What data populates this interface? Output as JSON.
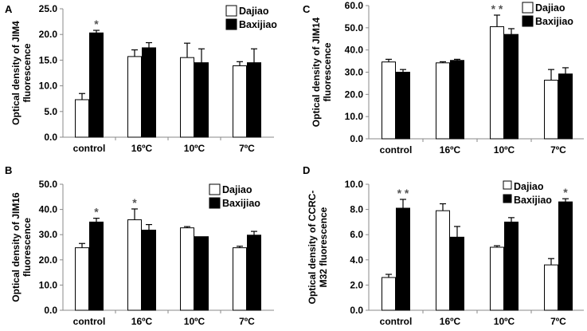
{
  "colors": {
    "dajiao": "#ffffff",
    "baxijiao": "#000000",
    "axis": "#888888",
    "stroke": "#000000"
  },
  "chart_data": [
    {
      "type": "bar",
      "panel": "A",
      "ylabel": "Optical density of JIM4 fluorescence",
      "ylabel_lines": [
        "Optical density of JIM4",
        "fluorescence"
      ],
      "ylim": [
        0,
        25
      ],
      "yticks": [
        "0.0",
        "5.0",
        "10.0",
        "15.0",
        "20.0",
        "25.0"
      ],
      "categories": [
        "control",
        "16ºC",
        "10ºC",
        "7ºC"
      ],
      "legend": [
        "Dajiao",
        "Baxijiao"
      ],
      "series": [
        {
          "name": "Dajiao",
          "values": [
            7.3,
            15.7,
            15.5,
            13.9
          ],
          "errors": [
            1.2,
            1.3,
            2.8,
            0.8
          ]
        },
        {
          "name": "Baxijiao",
          "values": [
            20.3,
            17.4,
            14.5,
            14.5
          ],
          "errors": [
            0.5,
            1.0,
            2.7,
            2.7
          ]
        }
      ],
      "annotations": [
        {
          "category": 0,
          "series": 1,
          "text": "*"
        }
      ]
    },
    {
      "type": "bar",
      "panel": "B",
      "ylabel": "Optical density of JIM16 fluorescence",
      "ylabel_lines": [
        "Optical density of JIM16",
        "fluorescence"
      ],
      "ylim": [
        0,
        50
      ],
      "yticks": [
        "0.0",
        "10.0",
        "20.0",
        "30.0",
        "40.0",
        "50.0"
      ],
      "categories": [
        "control",
        "16ºC",
        "10ºC",
        "7ºC"
      ],
      "legend": [
        "Dajiao",
        "Baxijiao"
      ],
      "series": [
        {
          "name": "Dajiao",
          "values": [
            24.8,
            35.9,
            32.7,
            24.8
          ],
          "errors": [
            1.7,
            4.3,
            0.5,
            0.6
          ]
        },
        {
          "name": "Baxijiao",
          "values": [
            35.0,
            31.8,
            29.2,
            29.8
          ],
          "errors": [
            1.5,
            2.2,
            0.0,
            1.5
          ]
        }
      ],
      "annotations": [
        {
          "category": 0,
          "series": 1,
          "text": "*"
        },
        {
          "category": 1,
          "series": 0,
          "text": "*"
        }
      ]
    },
    {
      "type": "bar",
      "panel": "C",
      "ylabel": "Optical density of JIM14 fluorescence",
      "ylabel_lines": [
        "Optical density of JIM14",
        "fluorescence"
      ],
      "ylim": [
        0,
        60
      ],
      "yticks": [
        "0.0",
        "10.0",
        "20.0",
        "30.0",
        "40.0",
        "50.0",
        "60.0"
      ],
      "categories": [
        "control",
        "16ºC",
        "10ºC",
        "7ºC"
      ],
      "legend": [
        "Dajiao",
        "Baxijiao"
      ],
      "series": [
        {
          "name": "Dajiao",
          "values": [
            34.6,
            34.2,
            50.5,
            26.4
          ],
          "errors": [
            1.2,
            0.5,
            5.2,
            4.8
          ]
        },
        {
          "name": "Baxijiao",
          "values": [
            30.0,
            35.3,
            47.0,
            29.2
          ],
          "errors": [
            1.2,
            0.5,
            2.6,
            2.8
          ]
        }
      ],
      "annotations": [
        {
          "category": 2,
          "series": 0,
          "text": "* *"
        }
      ]
    },
    {
      "type": "bar",
      "panel": "D",
      "ylabel": "Optical density of CCRC-M32 fluorescence",
      "ylabel_lines": [
        "Optical density of CCRC-",
        "M32 fluorescence"
      ],
      "ylim": [
        0,
        10
      ],
      "yticks": [
        "0.0",
        "2.0",
        "4.0",
        "6.0",
        "8.0",
        "10.0"
      ],
      "categories": [
        "control",
        "16ºC",
        "10ºC",
        "7ºC"
      ],
      "legend": [
        "Dajiao",
        "Baxijiao"
      ],
      "series": [
        {
          "name": "Dajiao",
          "values": [
            2.6,
            7.9,
            5.0,
            3.6
          ],
          "errors": [
            0.25,
            0.55,
            0.12,
            0.5
          ]
        },
        {
          "name": "Baxijiao",
          "values": [
            8.1,
            5.8,
            7.0,
            8.6
          ],
          "errors": [
            0.7,
            0.85,
            0.35,
            0.25
          ]
        }
      ],
      "annotations": [
        {
          "category": 0,
          "series": 1,
          "text": "* *"
        },
        {
          "category": 3,
          "series": 1,
          "text": "*"
        }
      ]
    }
  ]
}
